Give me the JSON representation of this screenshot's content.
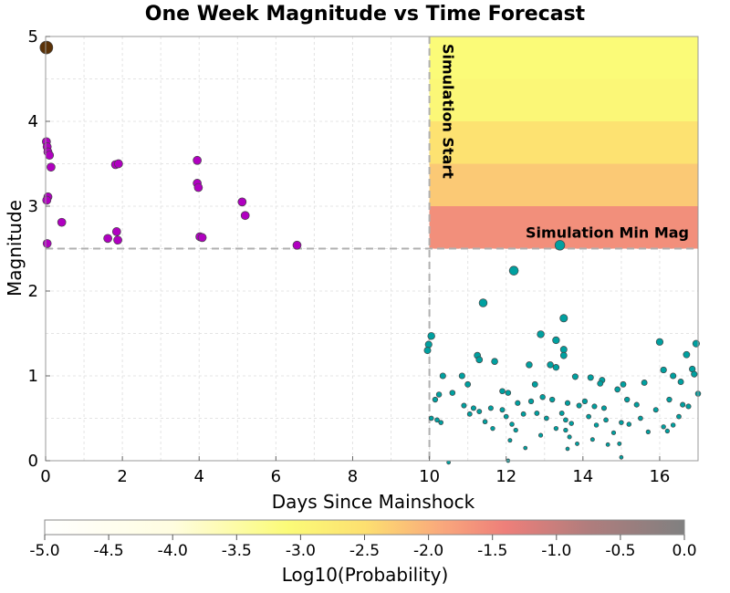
{
  "chart_data": {
    "type": "scatter",
    "title": "One Week Magnitude vs Time Forecast",
    "xlabel": "Days Since Mainshock",
    "ylabel": "Magnitude",
    "xlim": [
      0,
      17
    ],
    "ylim": [
      0,
      5
    ],
    "xticks": [
      0,
      2,
      4,
      6,
      8,
      10,
      12,
      14,
      16
    ],
    "yticks": [
      0,
      1,
      2,
      3,
      4,
      5
    ],
    "grid": true,
    "simulation_start_label": "Simulation Start",
    "simulation_start_x": 10,
    "simulation_min_mag_label": "Simulation Min Mag",
    "simulation_min_mag": 2.5,
    "forecast_heatmap": {
      "x_range": [
        10,
        17
      ],
      "rows": [
        {
          "mag_range": [
            4.5,
            5.0
          ],
          "log10_prob": -3.1
        },
        {
          "mag_range": [
            4.0,
            4.5
          ],
          "log10_prob": -3.0
        },
        {
          "mag_range": [
            3.5,
            4.0
          ],
          "log10_prob": -2.55
        },
        {
          "mag_range": [
            3.0,
            3.5
          ],
          "log10_prob": -2.25
        },
        {
          "mag_range": [
            2.5,
            3.0
          ],
          "log10_prob": -1.6
        }
      ]
    },
    "series": [
      {
        "kind": "mainshock",
        "color": "#5a3208",
        "points": [
          {
            "x": 0.02,
            "y": 4.87
          }
        ]
      },
      {
        "kind": "observed_aftershocks",
        "color": "#b000c0",
        "points": [
          {
            "x": 0.02,
            "y": 3.76
          },
          {
            "x": 0.04,
            "y": 3.7
          },
          {
            "x": 0.06,
            "y": 3.64
          },
          {
            "x": 0.1,
            "y": 3.6
          },
          {
            "x": 0.14,
            "y": 3.46
          },
          {
            "x": 0.06,
            "y": 3.11
          },
          {
            "x": 0.03,
            "y": 3.07
          },
          {
            "x": 0.42,
            "y": 2.81
          },
          {
            "x": 0.04,
            "y": 2.56
          },
          {
            "x": 1.82,
            "y": 3.49
          },
          {
            "x": 1.9,
            "y": 3.5
          },
          {
            "x": 1.85,
            "y": 2.7
          },
          {
            "x": 1.88,
            "y": 2.6
          },
          {
            "x": 1.62,
            "y": 2.62
          },
          {
            "x": 3.95,
            "y": 3.54
          },
          {
            "x": 3.95,
            "y": 3.27
          },
          {
            "x": 3.98,
            "y": 3.22
          },
          {
            "x": 4.02,
            "y": 2.64
          },
          {
            "x": 4.08,
            "y": 2.63
          },
          {
            "x": 5.12,
            "y": 3.05
          },
          {
            "x": 5.2,
            "y": 2.89
          },
          {
            "x": 6.55,
            "y": 2.54
          }
        ]
      },
      {
        "kind": "new_events",
        "color": "#00a0a0",
        "points": [
          {
            "x": 13.4,
            "y": 2.54
          },
          {
            "x": 12.2,
            "y": 2.24
          },
          {
            "x": 11.4,
            "y": 1.86
          },
          {
            "x": 13.5,
            "y": 1.68
          },
          {
            "x": 9.98,
            "y": 1.37
          },
          {
            "x": 10.05,
            "y": 1.47
          },
          {
            "x": 9.95,
            "y": 1.3
          },
          {
            "x": 12.9,
            "y": 1.49
          },
          {
            "x": 13.3,
            "y": 1.42
          },
          {
            "x": 13.5,
            "y": 1.31
          },
          {
            "x": 13.5,
            "y": 1.24
          },
          {
            "x": 16.95,
            "y": 1.38
          },
          {
            "x": 16.0,
            "y": 1.4
          },
          {
            "x": 16.7,
            "y": 1.25
          },
          {
            "x": 11.25,
            "y": 1.24
          },
          {
            "x": 11.3,
            "y": 1.19
          },
          {
            "x": 11.7,
            "y": 1.17
          },
          {
            "x": 12.6,
            "y": 1.13
          },
          {
            "x": 13.15,
            "y": 1.13
          },
          {
            "x": 13.3,
            "y": 1.1
          },
          {
            "x": 16.85,
            "y": 1.08
          },
          {
            "x": 16.1,
            "y": 1.07
          },
          {
            "x": 16.9,
            "y": 1.02
          },
          {
            "x": 10.35,
            "y": 1.0
          },
          {
            "x": 10.85,
            "y": 1.0
          },
          {
            "x": 13.8,
            "y": 0.99
          },
          {
            "x": 14.2,
            "y": 0.98
          },
          {
            "x": 14.5,
            "y": 0.95
          },
          {
            "x": 14.45,
            "y": 0.91
          },
          {
            "x": 15.05,
            "y": 0.9
          },
          {
            "x": 15.6,
            "y": 0.92
          },
          {
            "x": 16.35,
            "y": 1.0
          },
          {
            "x": 16.55,
            "y": 0.93
          },
          {
            "x": 11.0,
            "y": 0.9
          },
          {
            "x": 12.75,
            "y": 0.9
          },
          {
            "x": 14.9,
            "y": 0.84
          },
          {
            "x": 10.25,
            "y": 0.78
          },
          {
            "x": 10.6,
            "y": 0.8
          },
          {
            "x": 11.9,
            "y": 0.82
          },
          {
            "x": 12.05,
            "y": 0.8
          },
          {
            "x": 17.0,
            "y": 0.79
          },
          {
            "x": 10.15,
            "y": 0.72
          },
          {
            "x": 10.9,
            "y": 0.65
          },
          {
            "x": 11.15,
            "y": 0.62
          },
          {
            "x": 11.6,
            "y": 0.62
          },
          {
            "x": 12.3,
            "y": 0.68
          },
          {
            "x": 12.65,
            "y": 0.7
          },
          {
            "x": 12.95,
            "y": 0.75
          },
          {
            "x": 13.2,
            "y": 0.72
          },
          {
            "x": 13.6,
            "y": 0.68
          },
          {
            "x": 13.9,
            "y": 0.65
          },
          {
            "x": 14.05,
            "y": 0.7
          },
          {
            "x": 14.3,
            "y": 0.64
          },
          {
            "x": 14.55,
            "y": 0.62
          },
          {
            "x": 15.15,
            "y": 0.72
          },
          {
            "x": 15.4,
            "y": 0.66
          },
          {
            "x": 16.25,
            "y": 0.72
          },
          {
            "x": 16.6,
            "y": 0.66
          },
          {
            "x": 16.75,
            "y": 0.64
          },
          {
            "x": 11.05,
            "y": 0.55
          },
          {
            "x": 11.3,
            "y": 0.58
          },
          {
            "x": 12.0,
            "y": 0.52
          },
          {
            "x": 12.45,
            "y": 0.55
          },
          {
            "x": 13.05,
            "y": 0.5
          },
          {
            "x": 13.55,
            "y": 0.48
          },
          {
            "x": 14.15,
            "y": 0.52
          },
          {
            "x": 14.6,
            "y": 0.48
          },
          {
            "x": 15.5,
            "y": 0.5
          },
          {
            "x": 16.5,
            "y": 0.52
          },
          {
            "x": 10.05,
            "y": 0.5
          },
          {
            "x": 10.2,
            "y": 0.48
          },
          {
            "x": 10.3,
            "y": 0.45
          },
          {
            "x": 11.45,
            "y": 0.46
          },
          {
            "x": 12.15,
            "y": 0.43
          },
          {
            "x": 13.7,
            "y": 0.44
          },
          {
            "x": 14.35,
            "y": 0.42
          },
          {
            "x": 15.0,
            "y": 0.45
          },
          {
            "x": 15.2,
            "y": 0.43
          },
          {
            "x": 16.1,
            "y": 0.4
          },
          {
            "x": 16.35,
            "y": 0.42
          },
          {
            "x": 11.65,
            "y": 0.38
          },
          {
            "x": 12.25,
            "y": 0.36
          },
          {
            "x": 13.3,
            "y": 0.38
          },
          {
            "x": 13.55,
            "y": 0.36
          },
          {
            "x": 14.8,
            "y": 0.33
          },
          {
            "x": 15.7,
            "y": 0.34
          },
          {
            "x": 16.2,
            "y": 0.35
          },
          {
            "x": 12.9,
            "y": 0.3
          },
          {
            "x": 13.65,
            "y": 0.28
          },
          {
            "x": 14.25,
            "y": 0.25
          },
          {
            "x": 12.1,
            "y": 0.24
          },
          {
            "x": 13.85,
            "y": 0.2
          },
          {
            "x": 14.95,
            "y": 0.2
          },
          {
            "x": 12.5,
            "y": 0.15
          },
          {
            "x": 13.6,
            "y": 0.14
          },
          {
            "x": 14.65,
            "y": 0.19
          },
          {
            "x": 15.0,
            "y": 0.04
          },
          {
            "x": 12.05,
            "y": 0.0
          },
          {
            "x": 10.5,
            "y": -0.02
          },
          {
            "x": 13.45,
            "y": 0.56
          },
          {
            "x": 12.8,
            "y": 0.56
          },
          {
            "x": 11.9,
            "y": 0.6
          },
          {
            "x": 15.9,
            "y": 0.6
          }
        ]
      }
    ],
    "colorbar": {
      "label": "Log10(Probability)",
      "range": [
        -5.0,
        0.0
      ],
      "ticks": [
        "-5.0",
        "-4.5",
        "-4.0",
        "-3.5",
        "-3.0",
        "-2.5",
        "-2.0",
        "-1.5",
        "-1.0",
        "-0.5",
        "0.0"
      ]
    }
  }
}
